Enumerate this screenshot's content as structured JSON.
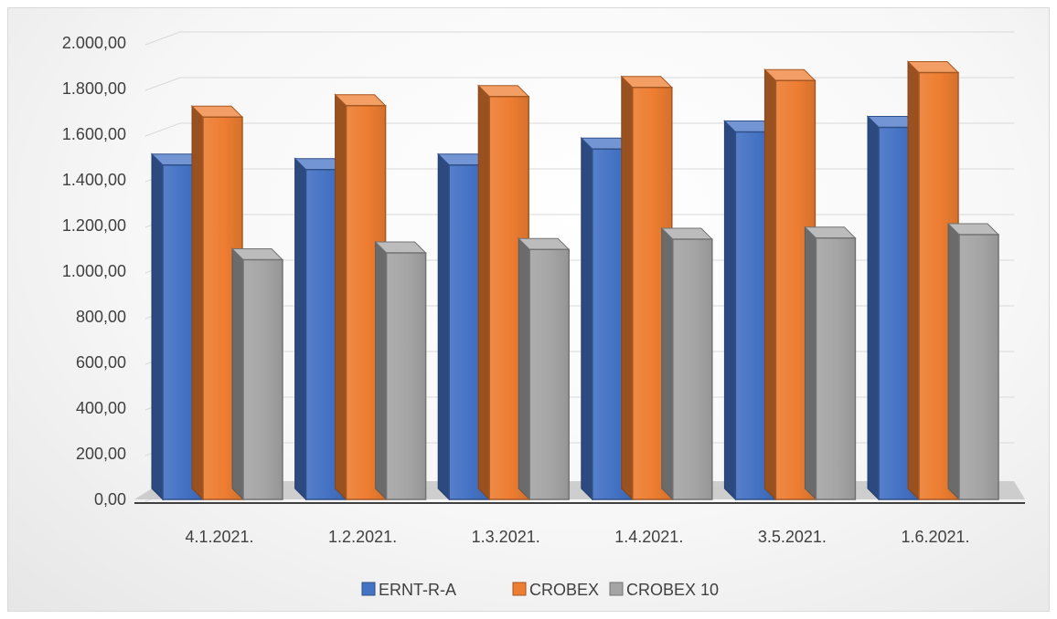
{
  "chart_data": {
    "type": "bar",
    "categories": [
      "4.1.2021.",
      "1.2.2021.",
      "1.3.2021.",
      "1.4.2021.",
      "3.5.2021.",
      "1.6.2021."
    ],
    "series": [
      {
        "name": "ERNT-R-A",
        "values": [
          1465,
          1445,
          1465,
          1535,
          1610,
          1630
        ],
        "color": "#4472C4"
      },
      {
        "name": "CROBEX",
        "values": [
          1675,
          1725,
          1765,
          1805,
          1835,
          1870
        ],
        "color": "#ED7D31"
      },
      {
        "name": "CROBEX 10",
        "values": [
          1050,
          1080,
          1095,
          1140,
          1145,
          1160
        ],
        "color": "#A5A5A5"
      }
    ],
    "title": "",
    "xlabel": "",
    "ylabel": "",
    "ylim": [
      0,
      2000
    ],
    "yticks": [
      "0,00",
      "200,00",
      "400,00",
      "600,00",
      "800,00",
      "1.000,00",
      "1.200,00",
      "1.400,00",
      "1.600,00",
      "1.800,00",
      "2.000,00"
    ],
    "grid": true,
    "legend_position": "bottom",
    "style": "3D clustered column"
  }
}
